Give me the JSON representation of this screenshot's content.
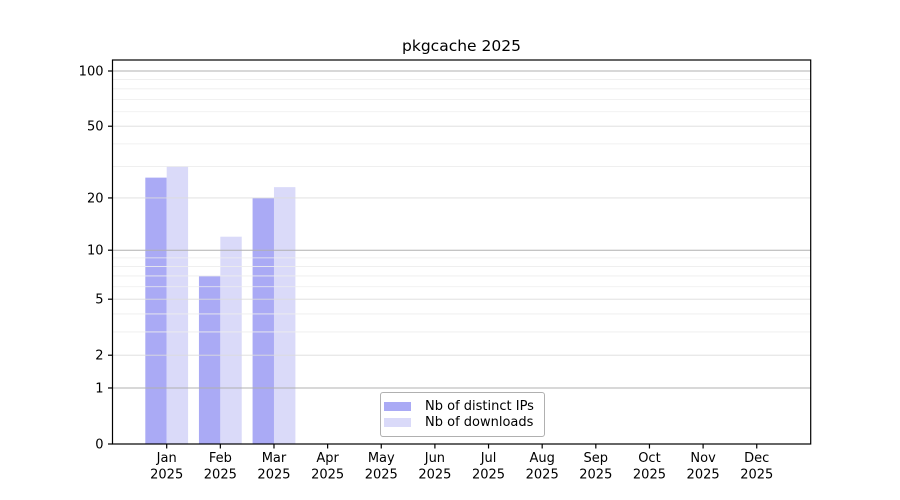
{
  "title": "pkgcache 2025",
  "colors": {
    "distinct_ips": "#aaaaf5",
    "downloads": "#dadaf9",
    "grid_decade": "#b0b0b0",
    "grid_major": "#dcdcdc",
    "grid_minor": "#ededed",
    "axis": "#000000",
    "tick_text": "#000000",
    "legend_border": "#b0b0b0"
  },
  "legend": {
    "items": [
      {
        "label": "Nb of distinct IPs",
        "color_key": "distinct_ips"
      },
      {
        "label": "Nb of downloads",
        "color_key": "downloads"
      }
    ]
  },
  "y_axis": {
    "scale": "log1p",
    "max": 100,
    "tick_values": [
      0,
      1,
      2,
      5,
      10,
      20,
      50,
      100
    ],
    "tick_labels": [
      "0",
      "1",
      "2",
      "5",
      "10",
      "20",
      "50",
      "100"
    ],
    "decade_values": [
      1,
      10,
      100
    ],
    "minor_values": [
      3,
      4,
      6,
      7,
      8,
      9,
      30,
      40,
      60,
      70,
      80,
      90
    ]
  },
  "x_axis": {
    "months": [
      "Jan",
      "Feb",
      "Mar",
      "Apr",
      "May",
      "Jun",
      "Jul",
      "Aug",
      "Sep",
      "Oct",
      "Nov",
      "Dec"
    ],
    "year": "2025"
  },
  "chart_data": {
    "type": "bar",
    "title": "pkgcache 2025",
    "categories": [
      "Jan 2025",
      "Feb 2025",
      "Mar 2025",
      "Apr 2025",
      "May 2025",
      "Jun 2025",
      "Jul 2025",
      "Aug 2025",
      "Sep 2025",
      "Oct 2025",
      "Nov 2025",
      "Dec 2025"
    ],
    "series": [
      {
        "name": "Nb of distinct IPs",
        "values": [
          26,
          7,
          20,
          0,
          0,
          0,
          0,
          0,
          0,
          0,
          0,
          0
        ]
      },
      {
        "name": "Nb of downloads",
        "values": [
          30,
          12,
          23,
          0,
          0,
          0,
          0,
          0,
          0,
          0,
          0,
          0
        ]
      }
    ],
    "xlabel": "",
    "ylabel": "",
    "yscale": "log1p",
    "ylim": [
      0,
      100
    ],
    "grid": true,
    "legend_position": "lower center"
  }
}
